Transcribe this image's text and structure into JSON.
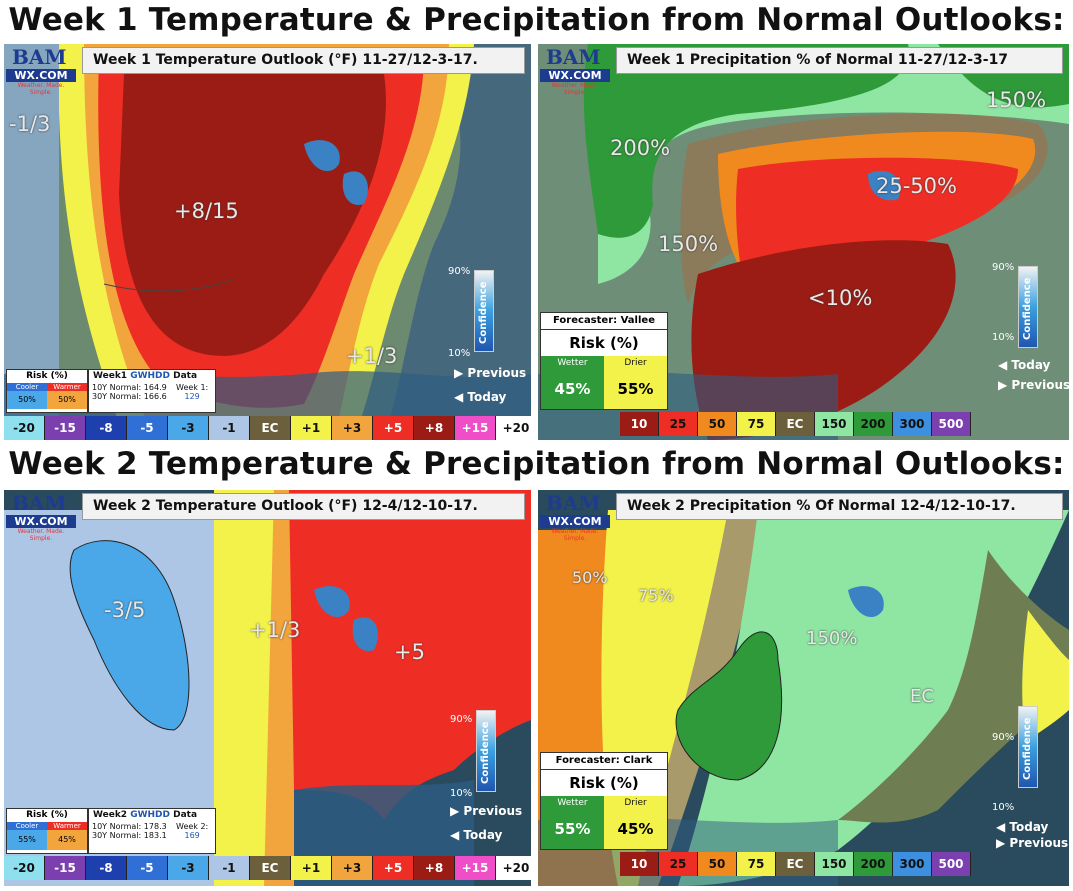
{
  "headings": {
    "week1": "Week 1 Temperature & Precipitation from Normal Outlooks:",
    "week2": "Week 2 Temperature & Precipitation from Normal Outlooks:"
  },
  "logo": {
    "letters": "BAM",
    "wx": "WX.COM",
    "tagline": "Weather. Made. Simple."
  },
  "panels": {
    "w1temp": {
      "title": "Week 1 Temperature Outlook (°F) 11-27/12-3-17.",
      "labels": [
        "-1/3",
        "+8/15",
        "+1/3"
      ],
      "risk": {
        "title": "Risk (%)",
        "cooler": "Cooler",
        "warmer": "Warmer",
        "cooler_val": "50%",
        "warmer_val": "50%"
      },
      "gwhdd": {
        "title_prefix": "Week1 ",
        "title_accent": "GWHDD",
        "title_suffix": " Data",
        "ten": "10Y Normal: 164.9",
        "thirty": "30Y Normal: 166.6",
        "week_label": "Week 1:",
        "week_val": "129"
      },
      "confidence": {
        "word": "Confidence",
        "top": "90%",
        "bottom": "10%"
      },
      "nav": {
        "previous": "Previous",
        "today": "Today"
      }
    },
    "w1precip": {
      "title": "Week 1 Precipitation % of Normal 11-27/12-3-17",
      "labels": [
        "150%",
        "200%",
        "25-50%",
        "150%",
        "<10%"
      ],
      "forecaster": "Forecaster: Vallee",
      "risk": {
        "title": "Risk (%)",
        "wetter": "Wetter",
        "drier": "Drier",
        "wetter_val": "45%",
        "drier_val": "55%"
      },
      "confidence": {
        "word": "Confidence",
        "top": "90%",
        "bottom": "10%"
      },
      "nav": {
        "today": "Today",
        "previous": "Previous"
      }
    },
    "w2temp": {
      "title": "Week 2 Temperature Outlook (°F) 12-4/12-10-17.",
      "labels": [
        "-3/5",
        "+1/3",
        "+5"
      ],
      "risk": {
        "title": "Risk (%)",
        "cooler": "Cooler",
        "warmer": "Warmer",
        "cooler_val": "55%",
        "warmer_val": "45%"
      },
      "gwhdd": {
        "title_prefix": "Week2 ",
        "title_accent": "GWHDD",
        "title_suffix": " Data",
        "ten": "10Y Normal: 178.3",
        "thirty": "30Y Normal: 183.1",
        "week_label": "Week 2:",
        "week_val": "169"
      },
      "confidence": {
        "word": "Confidence",
        "top": "90%",
        "bottom": "10%"
      },
      "nav": {
        "previous": "Previous",
        "today": "Today"
      }
    },
    "w2precip": {
      "title": "Week 2 Precipitation % Of Normal 12-4/12-10-17.",
      "labels": [
        "50%",
        "75%",
        "150%",
        "EC"
      ],
      "forecaster": "Forecaster: Clark",
      "risk": {
        "title": "Risk (%)",
        "wetter": "Wetter",
        "drier": "Drier",
        "wetter_val": "55%",
        "drier_val": "45%"
      },
      "confidence": {
        "word": "Confidence",
        "top": "90%",
        "bottom": "10%"
      },
      "nav": {
        "today": "Today",
        "previous": "Previous"
      }
    }
  },
  "temp_legend": [
    {
      "label": "-20",
      "bg": "#8fe0ef",
      "fg": "#111"
    },
    {
      "label": "-15",
      "bg": "#7b3fb0",
      "fg": "#fff"
    },
    {
      "label": "-8",
      "bg": "#1e3fae",
      "fg": "#fff"
    },
    {
      "label": "-5",
      "bg": "#2f6fd6",
      "fg": "#fff"
    },
    {
      "label": "-3",
      "bg": "#4aa8e8",
      "fg": "#111"
    },
    {
      "label": "-1",
      "bg": "#aec6e6",
      "fg": "#111"
    },
    {
      "label": "EC",
      "bg": "#6b5f3c",
      "fg": "#fff"
    },
    {
      "label": "+1",
      "bg": "#f3f24a",
      "fg": "#111"
    },
    {
      "label": "+3",
      "bg": "#f3a53d",
      "fg": "#111"
    },
    {
      "label": "+5",
      "bg": "#ee2e24",
      "fg": "#fff"
    },
    {
      "label": "+8",
      "bg": "#9b1c14",
      "fg": "#fff"
    },
    {
      "label": "+15",
      "bg": "#f04dc8",
      "fg": "#fff"
    },
    {
      "label": "+20",
      "bg": "#ffffff",
      "fg": "#111"
    }
  ],
  "precip_legend": [
    {
      "label": "10",
      "bg": "#9b1c14",
      "fg": "#fff"
    },
    {
      "label": "25",
      "bg": "#ee2e24",
      "fg": "#111"
    },
    {
      "label": "50",
      "bg": "#f08a1e",
      "fg": "#111"
    },
    {
      "label": "75",
      "bg": "#f3f24a",
      "fg": "#111"
    },
    {
      "label": "EC",
      "bg": "#6b5f3c",
      "fg": "#fff"
    },
    {
      "label": "150",
      "bg": "#8fe6a3",
      "fg": "#111"
    },
    {
      "label": "200",
      "bg": "#2f9a3a",
      "fg": "#111"
    },
    {
      "label": "300",
      "bg": "#3d8fe0",
      "fg": "#111"
    },
    {
      "label": "500",
      "bg": "#7b3fb0",
      "fg": "#fff"
    }
  ]
}
